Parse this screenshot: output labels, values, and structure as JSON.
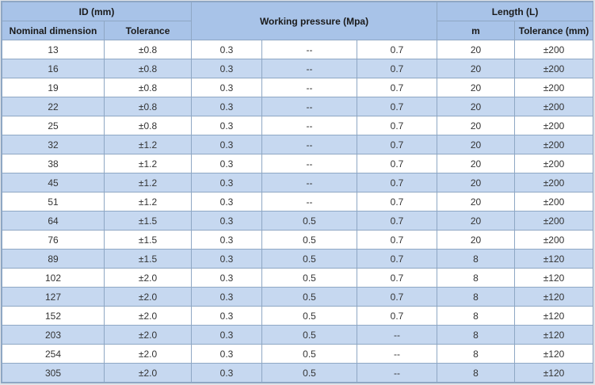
{
  "header": {
    "id_group": "ID (mm)",
    "nominal_dimension": "Nominal dimension",
    "id_tolerance": "Tolerance",
    "working_pressure": "Working pressure (Mpa)",
    "length_group": "Length (L)",
    "length_m": "m",
    "length_tolerance": "Tolerance (mm)"
  },
  "rows": [
    [
      "13",
      "±0.8",
      "0.3",
      "--",
      "0.7",
      "20",
      "±200"
    ],
    [
      "16",
      "±0.8",
      "0.3",
      "--",
      "0.7",
      "20",
      "±200"
    ],
    [
      "19",
      "±0.8",
      "0.3",
      "--",
      "0.7",
      "20",
      "±200"
    ],
    [
      "22",
      "±0.8",
      "0.3",
      "--",
      "0.7",
      "20",
      "±200"
    ],
    [
      "25",
      "±0.8",
      "0.3",
      "--",
      "0.7",
      "20",
      "±200"
    ],
    [
      "32",
      "±1.2",
      "0.3",
      "--",
      "0.7",
      "20",
      "±200"
    ],
    [
      "38",
      "±1.2",
      "0.3",
      "--",
      "0.7",
      "20",
      "±200"
    ],
    [
      "45",
      "±1.2",
      "0.3",
      "--",
      "0.7",
      "20",
      "±200"
    ],
    [
      "51",
      "±1.2",
      "0.3",
      "--",
      "0.7",
      "20",
      "±200"
    ],
    [
      "64",
      "±1.5",
      "0.3",
      "0.5",
      "0.7",
      "20",
      "±200"
    ],
    [
      "76",
      "±1.5",
      "0.3",
      "0.5",
      "0.7",
      "20",
      "±200"
    ],
    [
      "89",
      "±1.5",
      "0.3",
      "0.5",
      "0.7",
      "8",
      "±120"
    ],
    [
      "102",
      "±2.0",
      "0.3",
      "0.5",
      "0.7",
      "8",
      "±120"
    ],
    [
      "127",
      "±2.0",
      "0.3",
      "0.5",
      "0.7",
      "8",
      "±120"
    ],
    [
      "152",
      "±2.0",
      "0.3",
      "0.5",
      "0.7",
      "8",
      "±120"
    ],
    [
      "203",
      "±2.0",
      "0.3",
      "0.5",
      "--",
      "8",
      "±120"
    ],
    [
      "254",
      "±2.0",
      "0.3",
      "0.5",
      "--",
      "8",
      "±120"
    ],
    [
      "305",
      "±2.0",
      "0.3",
      "0.5",
      "--",
      "8",
      "±120"
    ]
  ]
}
